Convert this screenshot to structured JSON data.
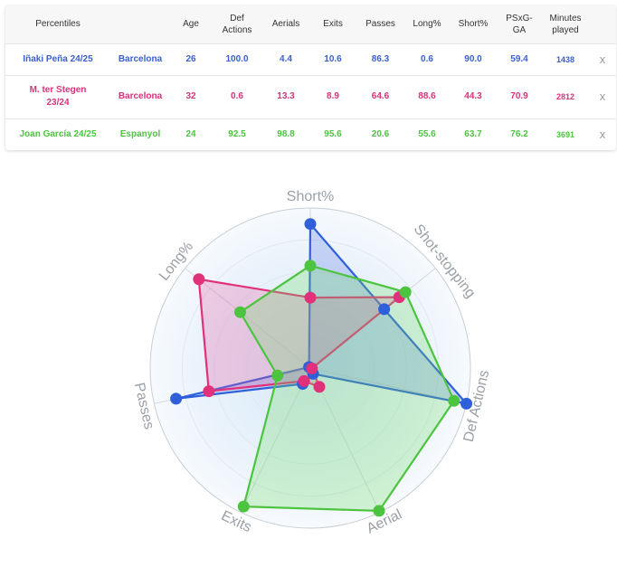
{
  "table": {
    "headers": [
      "Percentiles",
      "",
      "Age",
      "Def\nActions",
      "Aerials",
      "Exits",
      "Passes",
      "Long%",
      "Short%",
      "PSxG-\nGA",
      "Minutes\nplayed",
      ""
    ],
    "close_label": "x",
    "rows": [
      {
        "player": "Iñaki Peña 24/25",
        "team": "Barcelona",
        "age": "26",
        "def_actions": "100.0",
        "aerials": "4.4",
        "exits": "10.6",
        "passes": "86.3",
        "long": "0.6",
        "short": "90.0",
        "psxg": "59.4",
        "minutes": "1438",
        "color": "#3a5fcd"
      },
      {
        "player": "M. ter Stegen\n23/24",
        "team": "Barcelona",
        "age": "32",
        "def_actions": "0.6",
        "aerials": "13.3",
        "exits": "8.9",
        "passes": "64.6",
        "long": "88.6",
        "short": "44.3",
        "psxg": "70.9",
        "minutes": "2812",
        "color": "#d6337a"
      },
      {
        "player": "Joan García 24/25",
        "team": "Espanyol",
        "age": "24",
        "def_actions": "92.5",
        "aerials": "98.8",
        "exits": "95.6",
        "passes": "20.6",
        "long": "55.6",
        "short": "63.7",
        "psxg": "76.2",
        "minutes": "3691",
        "color": "#4cc43f"
      }
    ]
  },
  "chart_data": {
    "type": "radar",
    "axes": [
      "Short%",
      "Shot-stopping",
      "Def Actions",
      "Aerial",
      "Exits",
      "Passes",
      "Long%"
    ],
    "range": [
      0,
      100
    ],
    "series": [
      {
        "name": "Iñaki Peña 24/25",
        "color": "#2f5fd9",
        "fill": "rgba(90,120,230,0.28)",
        "values": [
          90,
          59,
          100,
          4,
          11,
          86,
          1
        ]
      },
      {
        "name": "M. ter Stegen 23/24",
        "color": "#e0317a",
        "fill": "rgba(230,90,160,0.28)",
        "values": [
          44,
          71,
          1,
          13,
          9,
          65,
          89
        ]
      },
      {
        "name": "Joan García 24/25",
        "color": "#4cc43f",
        "fill": "rgba(110,220,100,0.28)",
        "values": [
          64,
          76,
          92,
          99,
          96,
          21,
          56
        ]
      }
    ]
  }
}
